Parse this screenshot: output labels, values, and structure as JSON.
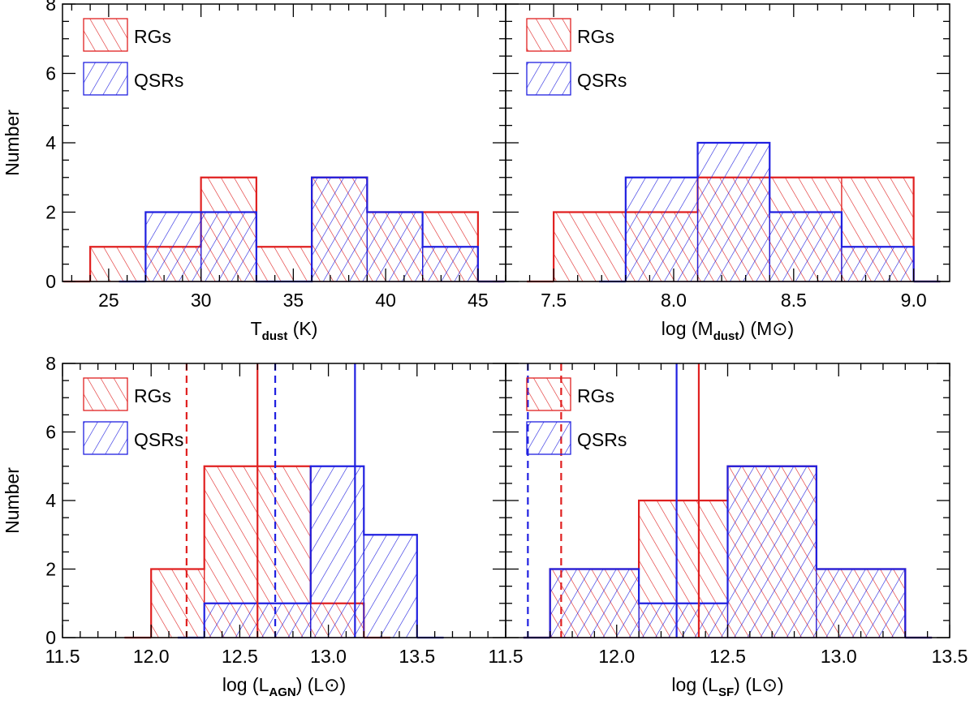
{
  "chart_data": [
    {
      "type": "histogram",
      "panel": "top-left",
      "xlabel": "T",
      "xlabel_sub": "dust",
      "xlabel_tail": " (K)",
      "ylabel": "Number",
      "xlim": [
        22.5,
        46.5
      ],
      "ylim": [
        0,
        8
      ],
      "xticks": [
        25,
        30,
        35,
        40,
        45
      ],
      "xtick_labels": [
        "25",
        "30",
        "35",
        "40",
        "45"
      ],
      "yticks": [
        0,
        2,
        4,
        6,
        8
      ],
      "ytick_labels": [
        "0",
        "2",
        "4",
        "6",
        "8"
      ],
      "legend": [
        "RGs",
        "QSRs"
      ],
      "series": [
        {
          "name": "RGs",
          "color": "#e02020",
          "hatch": "backslash",
          "edges": [
            24,
            27,
            30,
            33,
            36,
            39,
            42,
            45
          ],
          "counts": [
            1,
            1,
            3,
            1,
            3,
            2,
            2
          ]
        },
        {
          "name": "QSRs",
          "color": "#2020e0",
          "hatch": "slash",
          "edges": [
            27,
            30,
            33,
            36,
            39,
            42,
            45
          ],
          "counts": [
            2,
            2,
            0,
            3,
            2,
            1
          ]
        }
      ],
      "vlines": []
    },
    {
      "type": "histogram",
      "panel": "top-right",
      "xlabel": "log (M",
      "xlabel_sub": "dust",
      "xlabel_tail": ") (M⊙)",
      "ylabel": "",
      "xlim": [
        7.3,
        9.15
      ],
      "ylim": [
        0,
        8
      ],
      "xticks": [
        7.5,
        8.0,
        8.5,
        9.0
      ],
      "xtick_labels": [
        "7.5",
        "8.0",
        "8.5",
        "9.0"
      ],
      "yticks": [
        0,
        2,
        4,
        6,
        8
      ],
      "ytick_labels": [],
      "legend": [
        "RGs",
        "QSRs"
      ],
      "series": [
        {
          "name": "RGs",
          "color": "#e02020",
          "hatch": "backslash",
          "edges": [
            7.5,
            8.1,
            8.4,
            8.7,
            9.0
          ],
          "counts": [
            2,
            3,
            3,
            3
          ]
        },
        {
          "name": "QSRs",
          "color": "#2020e0",
          "hatch": "slash",
          "edges": [
            7.8,
            8.1,
            8.4,
            8.7,
            9.0
          ],
          "counts": [
            3,
            4,
            2,
            1
          ]
        }
      ],
      "vlines": []
    },
    {
      "type": "histogram",
      "panel": "bottom-left",
      "xlabel": "log (L",
      "xlabel_sub": "AGN",
      "xlabel_tail": ") (L⊙)",
      "ylabel": "Number",
      "xlim": [
        11.5,
        14.0
      ],
      "ylim": [
        0,
        8
      ],
      "xticks": [
        11.5,
        12.0,
        12.5,
        13.0,
        13.5
      ],
      "xtick_labels": [
        "11.5",
        "12.0",
        "12.5",
        "13.0",
        "13.5"
      ],
      "yticks": [
        0,
        2,
        4,
        6,
        8
      ],
      "ytick_labels": [
        "0",
        "2",
        "4",
        "6",
        "8"
      ],
      "legend": [
        "RGs",
        "QSRs"
      ],
      "series": [
        {
          "name": "RGs",
          "color": "#e02020",
          "hatch": "backslash",
          "edges": [
            12.0,
            12.3,
            12.9,
            13.2
          ],
          "counts": [
            2,
            5,
            1
          ]
        },
        {
          "name": "QSRs",
          "color": "#2020e0",
          "hatch": "slash",
          "edges": [
            12.3,
            12.9,
            13.2,
            13.5
          ],
          "counts": [
            1,
            5,
            3
          ]
        }
      ],
      "vlines": [
        {
          "x": 12.2,
          "color": "#e02020",
          "style": "dashed"
        },
        {
          "x": 12.6,
          "color": "#e02020",
          "style": "solid"
        },
        {
          "x": 12.7,
          "color": "#2020e0",
          "style": "dashed"
        },
        {
          "x": 13.15,
          "color": "#2020e0",
          "style": "solid"
        }
      ]
    },
    {
      "type": "histogram",
      "panel": "bottom-right",
      "xlabel": "log (L",
      "xlabel_sub": "SF",
      "xlabel_tail": ") (L⊙)",
      "ylabel": "",
      "xlim": [
        11.5,
        13.5
      ],
      "ylim": [
        0,
        8
      ],
      "xticks": [
        11.5,
        12.0,
        12.5,
        13.0,
        13.5
      ],
      "xtick_labels": [
        "11.5",
        "12.0",
        "12.5",
        "13.0",
        "13.5"
      ],
      "yticks": [
        0,
        2,
        4,
        6,
        8
      ],
      "ytick_labels": [],
      "legend": [
        "RGs",
        "QSRs"
      ],
      "series": [
        {
          "name": "RGs",
          "color": "#e02020",
          "hatch": "backslash",
          "edges": [
            11.7,
            12.1,
            12.5,
            12.9,
            13.3
          ],
          "counts": [
            2,
            4,
            5,
            2
          ]
        },
        {
          "name": "QSRs",
          "color": "#2020e0",
          "hatch": "slash",
          "edges": [
            11.7,
            12.1,
            12.5,
            12.9,
            13.3
          ],
          "counts": [
            2,
            1,
            5,
            2
          ]
        }
      ],
      "vlines": [
        {
          "x": 11.6,
          "color": "#2020e0",
          "style": "dashed"
        },
        {
          "x": 11.75,
          "color": "#e02020",
          "style": "dashed"
        },
        {
          "x": 12.27,
          "color": "#2020e0",
          "style": "solid"
        },
        {
          "x": 12.37,
          "color": "#e02020",
          "style": "solid"
        }
      ]
    }
  ]
}
